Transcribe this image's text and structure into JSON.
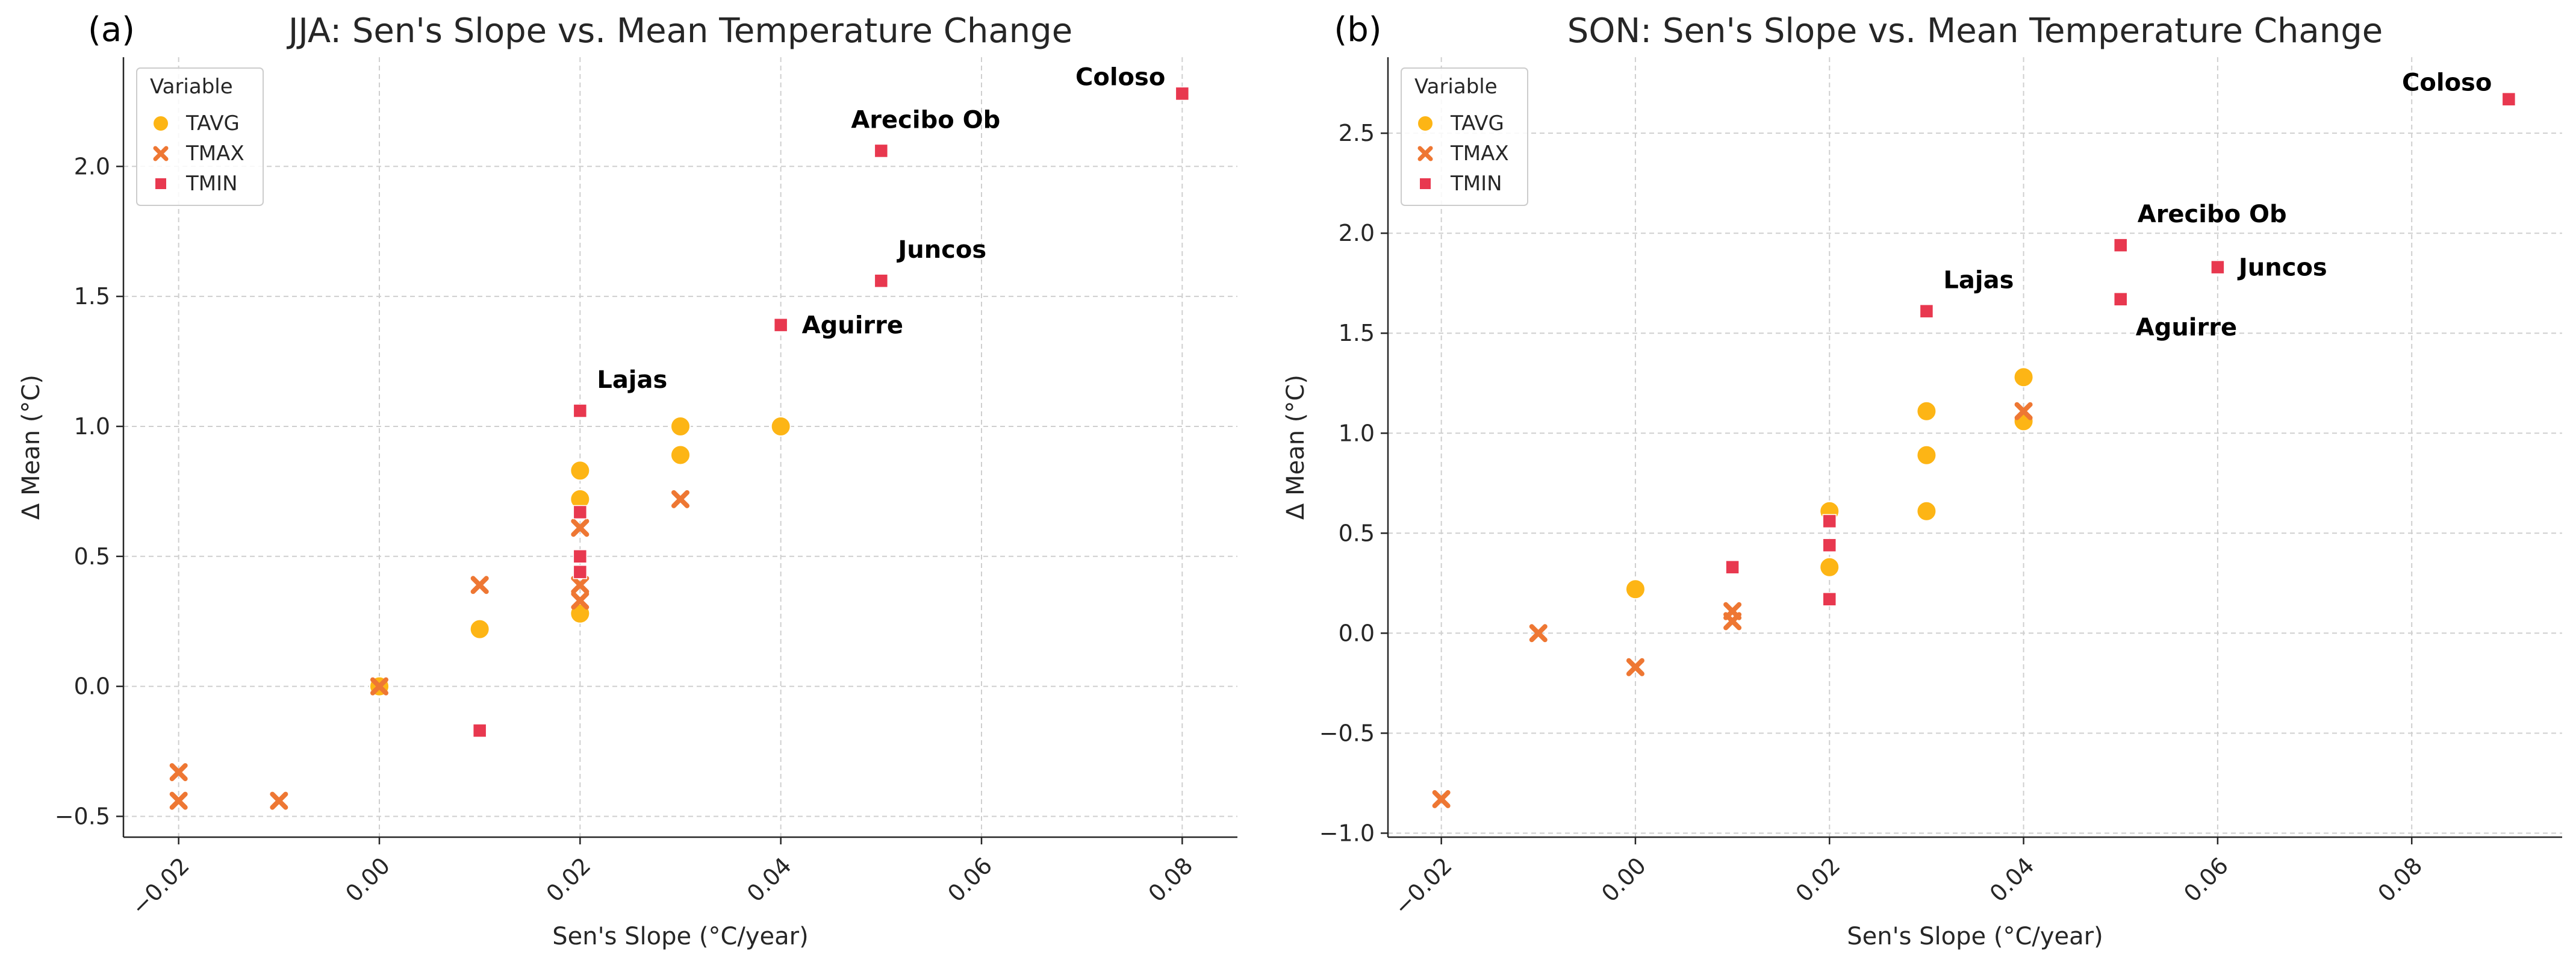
{
  "chart_data": [
    {
      "type": "scatter",
      "panel_label": "(a)",
      "title": "JJA: Sen's Slope vs. Mean Temperature Change",
      "xlabel": "Sen's Slope (°C/year)",
      "ylabel": "Δ Mean (°C)",
      "xlim": [
        -0.0255,
        0.0855
      ],
      "ylim": [
        -0.58,
        2.42
      ],
      "xticks": [
        -0.02,
        0.0,
        0.02,
        0.04,
        0.06,
        0.08
      ],
      "xtick_labels": [
        "−0.02",
        "0.00",
        "0.02",
        "0.04",
        "0.06",
        "0.08"
      ],
      "yticks": [
        -0.5,
        0.0,
        0.5,
        1.0,
        1.5,
        2.0
      ],
      "ytick_labels": [
        "−0.5",
        "0.0",
        "0.5",
        "1.0",
        "1.5",
        "2.0"
      ],
      "legend": {
        "title": "Variable",
        "position": "top-left"
      },
      "series": [
        {
          "name": "TAVG",
          "marker": "circle",
          "color": "#FDB515",
          "points": [
            [
              0.0,
              0.0
            ],
            [
              0.01,
              0.22
            ],
            [
              0.02,
              0.28
            ],
            [
              0.02,
              0.72
            ],
            [
              0.02,
              0.83
            ],
            [
              0.03,
              0.89
            ],
            [
              0.03,
              1.0
            ],
            [
              0.04,
              1.0
            ]
          ]
        },
        {
          "name": "TMAX",
          "marker": "x",
          "color": "#EE7733",
          "points": [
            [
              -0.02,
              -0.33
            ],
            [
              -0.02,
              -0.44
            ],
            [
              -0.01,
              -0.44
            ],
            [
              0.0,
              0.0
            ],
            [
              0.01,
              0.39
            ],
            [
              0.02,
              0.33
            ],
            [
              0.02,
              0.39
            ],
            [
              0.02,
              0.61
            ],
            [
              0.03,
              0.72
            ]
          ]
        },
        {
          "name": "TMIN",
          "marker": "square",
          "color": "#E8384F",
          "points": [
            [
              0.01,
              -0.17
            ],
            [
              0.02,
              0.44
            ],
            [
              0.02,
              0.5
            ],
            [
              0.02,
              0.67
            ],
            [
              0.02,
              1.06
            ],
            [
              0.04,
              1.39
            ],
            [
              0.05,
              1.56
            ],
            [
              0.05,
              2.06
            ],
            [
              0.08,
              2.28
            ]
          ]
        }
      ],
      "annotations": [
        {
          "text": "Lajas",
          "x": 0.02,
          "y": 1.06,
          "placement": "upper-right"
        },
        {
          "text": "Aguirre",
          "x": 0.04,
          "y": 1.39,
          "placement": "right"
        },
        {
          "text": "Juncos",
          "x": 0.05,
          "y": 1.56,
          "placement": "upper-right"
        },
        {
          "text": "Arecibo Ob",
          "x": 0.05,
          "y": 2.06,
          "placement": "upper-left"
        },
        {
          "text": "Coloso",
          "x": 0.08,
          "y": 2.28,
          "placement": "left"
        }
      ]
    },
    {
      "type": "scatter",
      "panel_label": "(b)",
      "title": "SON: Sen's Slope vs. Mean Temperature Change",
      "xlabel": "Sen's Slope (°C/year)",
      "ylabel": "Δ Mean (°C)",
      "xlim": [
        -0.0255,
        0.0955
      ],
      "ylim": [
        -1.02,
        2.88
      ],
      "xticks": [
        -0.02,
        0.0,
        0.02,
        0.04,
        0.06,
        0.08
      ],
      "xtick_labels": [
        "−0.02",
        "0.00",
        "0.02",
        "0.04",
        "0.06",
        "0.08"
      ],
      "yticks": [
        -1.0,
        -0.5,
        0.0,
        0.5,
        1.0,
        1.5,
        2.0,
        2.5
      ],
      "ytick_labels": [
        "−1.0",
        "−0.5",
        "0.0",
        "0.5",
        "1.0",
        "1.5",
        "2.0",
        "2.5"
      ],
      "legend": {
        "title": "Variable",
        "position": "top-left"
      },
      "series": [
        {
          "name": "TAVG",
          "marker": "circle",
          "color": "#FDB515",
          "points": [
            [
              0.0,
              0.22
            ],
            [
              0.02,
              0.33
            ],
            [
              0.02,
              0.61
            ],
            [
              0.03,
              0.61
            ],
            [
              0.03,
              0.89
            ],
            [
              0.03,
              1.11
            ],
            [
              0.04,
              1.06
            ],
            [
              0.04,
              1.28
            ]
          ]
        },
        {
          "name": "TMAX",
          "marker": "x",
          "color": "#EE7733",
          "points": [
            [
              -0.02,
              -0.83
            ],
            [
              -0.01,
              0.0
            ],
            [
              0.0,
              -0.17
            ],
            [
              0.01,
              0.06
            ],
            [
              0.01,
              0.11
            ],
            [
              0.04,
              1.11
            ]
          ]
        },
        {
          "name": "TMIN",
          "marker": "square",
          "color": "#E8384F",
          "points": [
            [
              0.01,
              0.33
            ],
            [
              0.02,
              0.17
            ],
            [
              0.02,
              0.44
            ],
            [
              0.02,
              0.56
            ],
            [
              0.03,
              1.61
            ],
            [
              0.05,
              1.67
            ],
            [
              0.05,
              1.94
            ],
            [
              0.06,
              1.83
            ],
            [
              0.09,
              2.67
            ]
          ]
        }
      ],
      "annotations": [
        {
          "text": "Lajas",
          "x": 0.03,
          "y": 1.61,
          "placement": "upper-right"
        },
        {
          "text": "Arecibo Ob",
          "x": 0.05,
          "y": 1.94,
          "placement": "upper-right"
        },
        {
          "text": "Juncos",
          "x": 0.06,
          "y": 1.83,
          "placement": "right"
        },
        {
          "text": "Aguirre",
          "x": 0.05,
          "y": 1.67,
          "placement": "lower-right"
        },
        {
          "text": "Coloso",
          "x": 0.09,
          "y": 2.67,
          "placement": "left"
        }
      ]
    }
  ]
}
